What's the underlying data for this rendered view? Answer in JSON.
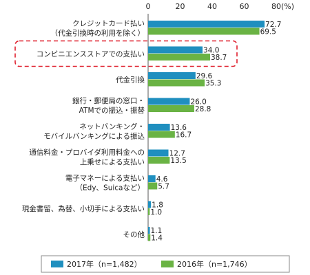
{
  "chart_data": {
    "type": "bar",
    "orientation": "horizontal",
    "unit_label": "(%)",
    "xlim": [
      0,
      80
    ],
    "xticks": [
      0,
      20,
      40,
      60,
      80
    ],
    "grid": false,
    "legend_position": "bottom",
    "categories": [
      [
        "クレジットカード払い",
        "（代金引換時の利用を除く）"
      ],
      [
        "コンビニエンスストアでの支払い"
      ],
      [
        "代金引換"
      ],
      [
        "銀行・郵便局の窓口・",
        "ATMでの振込・振替"
      ],
      [
        "ネットバンキング・",
        "モバイルバンキングによる振込"
      ],
      [
        "通信料金・プロバイダ利用料金への",
        "上乗せによる支払い"
      ],
      [
        "電子マネーによる支払い",
        "（Edy、Suicaなど）"
      ],
      [
        "現金書留、為替、小切手による支払い"
      ],
      [
        "その他"
      ]
    ],
    "highlighted_category_index": 1,
    "series": [
      {
        "name": "2017年（n=1,482）",
        "color": "#1f8fbf",
        "values": [
          72.7,
          34.0,
          29.6,
          26.0,
          13.6,
          12.7,
          4.6,
          1.8,
          1.1
        ]
      },
      {
        "name": "2016年（n=1,746）",
        "color": "#6ab344",
        "values": [
          69.5,
          38.7,
          35.3,
          28.8,
          16.7,
          13.5,
          5.7,
          1.0,
          1.4
        ]
      }
    ],
    "highlight_color": "#e0202e"
  }
}
